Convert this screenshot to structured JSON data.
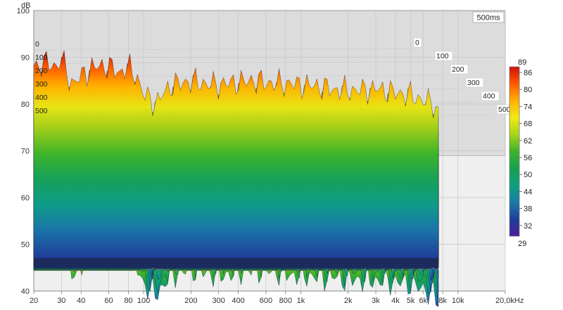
{
  "chart_data": {
    "type": "area",
    "title": "",
    "badge": "500ms",
    "y_unit": "dB",
    "y_ticks": [
      "100",
      "90",
      "80",
      "70",
      "60",
      "50",
      "40"
    ],
    "ylim": [
      40,
      100
    ],
    "x_ticks": [
      "20",
      "30",
      "40",
      "60",
      "80",
      "100",
      "200",
      "300",
      "400",
      "600",
      "800",
      "1k",
      "2k",
      "3k",
      "4k",
      "5k",
      "6k",
      "8k",
      "10k",
      "20,0kHz"
    ],
    "x_tick_values": [
      20,
      30,
      40,
      60,
      80,
      100,
      200,
      300,
      400,
      600,
      800,
      1000,
      2000,
      3000,
      4000,
      5000,
      6000,
      8000,
      10000,
      20000
    ],
    "xlim": [
      20,
      20000
    ],
    "x_scale": "log",
    "time_ticks": [
      "0",
      "100",
      "200",
      "300",
      "400",
      "500"
    ],
    "time_unit": "ms",
    "colorbar": {
      "ticks": [
        "86",
        "80",
        "74",
        "68",
        "62",
        "56",
        "50",
        "44",
        "38",
        "32"
      ],
      "max_label": "89",
      "min_label": "29",
      "colors": [
        "#d01010",
        "#ff5a00",
        "#ffb000",
        "#f2ea14",
        "#a6d41a",
        "#3cb42a",
        "#18a050",
        "#0fa07a",
        "#1a7aa8",
        "#1e3f9a",
        "#4a1e9a"
      ]
    },
    "series": [
      {
        "time_ms": 0,
        "freq_hz": [
          20,
          25,
          28,
          30,
          33,
          36,
          40,
          50,
          60,
          70,
          80,
          90,
          100,
          120,
          150,
          200,
          300,
          500,
          1000,
          2000,
          3000,
          5000,
          7000,
          7500
        ],
        "level_db": [
          88,
          89,
          88,
          90,
          86,
          84,
          86,
          88,
          88,
          87,
          88,
          86,
          82,
          80,
          84,
          85,
          84,
          85,
          84,
          83,
          83,
          82,
          80,
          78
        ]
      }
    ],
    "legend": "colorbar-right",
    "grid": true
  }
}
